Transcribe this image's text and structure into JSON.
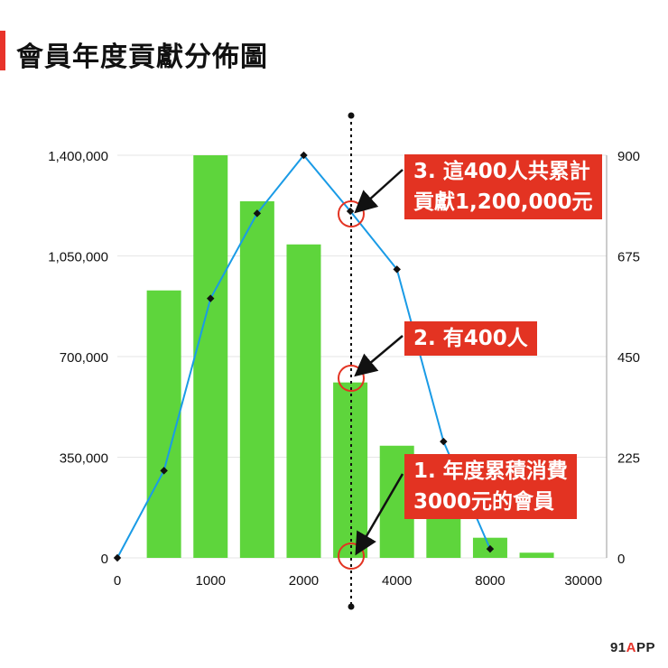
{
  "title": "會員年度貢獻分佈圖",
  "brand": {
    "prefix": "91",
    "accent": "A",
    "suffix": "PP"
  },
  "callouts": [
    {
      "lines": [
        "3. 這400人共累計",
        "貢獻1,200,000元"
      ]
    },
    {
      "lines": [
        "2. 有400人"
      ]
    },
    {
      "lines": [
        "1. 年度累積消費",
        "3000元的會員"
      ]
    }
  ],
  "colors": {
    "bar": "#5ed53c",
    "line": "#1a9be6",
    "accent": "#e33322",
    "marker": "#111111",
    "grid": "#e6e6e6"
  },
  "chart_data": {
    "type": "bar",
    "title": "會員年度貢獻分佈圖",
    "xlabel": "",
    "ylabel": "",
    "x_tick_labels": [
      "0",
      "1000",
      "2000",
      "4000",
      "8000",
      "30000"
    ],
    "left_axis": {
      "ylim": [
        0,
        1400000
      ],
      "ticks": [
        "0",
        "350,000",
        "700,000",
        "1,050,000",
        "1,400,000"
      ]
    },
    "right_axis": {
      "ylim": [
        0,
        900
      ],
      "ticks": [
        "0",
        "225",
        "450",
        "675",
        "900"
      ]
    },
    "grid": true,
    "bars": {
      "axis": "left",
      "values": [
        930000,
        1400000,
        1240000,
        1090000,
        610000,
        390000,
        150000,
        70000,
        18000
      ]
    },
    "line": {
      "axis": "right",
      "values": [
        0,
        195,
        580,
        770,
        900,
        775,
        645,
        260,
        20
      ]
    },
    "reference_line": {
      "position": "between bar 5 and bar 6",
      "style": "dotted"
    }
  }
}
